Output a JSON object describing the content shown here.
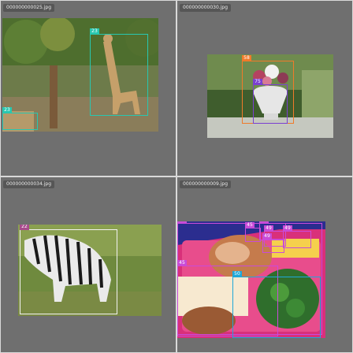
{
  "panels": [
    {
      "filename": "000000000025.jpg",
      "boxes": [
        {
          "label": "23",
          "color": "#28c7b0"
        },
        {
          "label": "23",
          "color": "#28c7b0"
        }
      ]
    },
    {
      "filename": "000000000030.jpg",
      "boxes": [
        {
          "label": "58",
          "color": "#f07a2a"
        },
        {
          "label": "75",
          "color": "#7b3fd1"
        }
      ]
    },
    {
      "filename": "000000000034.jpg",
      "boxes": [
        {
          "label": "22",
          "color": "#f2f2f2"
        }
      ]
    },
    {
      "filename": "000000000009.jpg",
      "boxes": [
        {
          "label": "45",
          "color": "#c94bd8"
        },
        {
          "label": "45",
          "color": "#c94bd8"
        },
        {
          "label": "49",
          "color": "#c94bd8"
        },
        {
          "label": "49",
          "color": "#c94bd8"
        },
        {
          "label": "49",
          "color": "#c94bd8"
        },
        {
          "label": "49",
          "color": "#c94bd8"
        },
        {
          "label": "45",
          "color": "#c94bd8"
        },
        {
          "label": "50",
          "color": "#1fa8d9"
        }
      ]
    }
  ]
}
